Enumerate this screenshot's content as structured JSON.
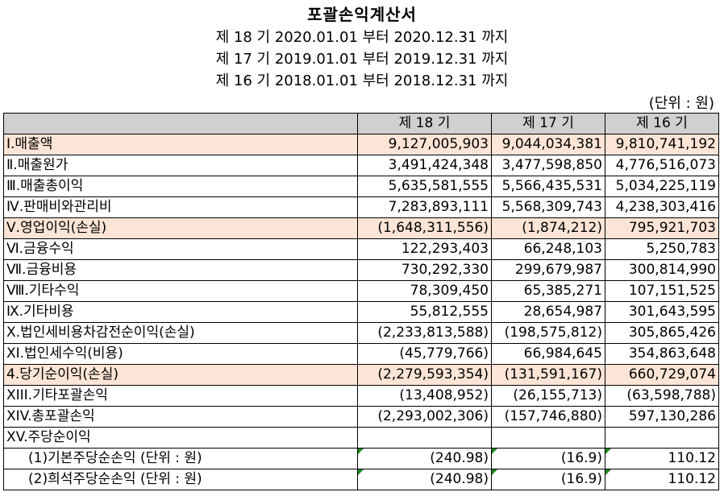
{
  "document": {
    "title": "포괄손익계산서",
    "periods": [
      "제 18 기 2020.01.01 부터 2020.12.31 까지",
      "제 17 기 2019.01.01 부터 2019.12.31 까지",
      "제 16 기 2018.01.01 부터 2018.12.31 까지"
    ],
    "unit": "(단위 : 원)"
  },
  "table": {
    "columns": [
      "",
      "제 18 기",
      "제 17 기",
      "제 16 기"
    ],
    "rows": [
      {
        "label": "Ⅰ.매출액",
        "values": [
          "9,127,005,903",
          "9,044,034,381",
          "9,810,741,192"
        ],
        "highlight": true
      },
      {
        "label": "Ⅱ.매출원가",
        "values": [
          "3,491,424,348",
          "3,477,598,850",
          "4,776,516,073"
        ]
      },
      {
        "label": "Ⅲ.매출총이익",
        "values": [
          "5,635,581,555",
          "5,566,435,531",
          "5,034,225,119"
        ]
      },
      {
        "label": "Ⅳ.판매비와관리비",
        "values": [
          "7,283,893,111",
          "5,568,309,743",
          "4,238,303,416"
        ]
      },
      {
        "label": "Ⅴ.영업이익(손실)",
        "values": [
          "(1,648,311,556)",
          "(1,874,212)",
          "795,921,703"
        ],
        "highlight": true
      },
      {
        "label": "Ⅵ.금융수익",
        "values": [
          "122,293,403",
          "66,248,103",
          "5,250,783"
        ]
      },
      {
        "label": "Ⅶ.금융비용",
        "values": [
          "730,292,330",
          "299,679,987",
          "300,814,990"
        ]
      },
      {
        "label": "Ⅷ.기타수익",
        "values": [
          "78,309,450",
          "65,385,271",
          "107,151,525"
        ]
      },
      {
        "label": "Ⅸ.기타비용",
        "values": [
          "55,812,555",
          "28,654,987",
          "301,643,595"
        ]
      },
      {
        "label": "Ⅹ.법인세비용차감전순이익(손실)",
        "values": [
          "(2,233,813,588)",
          "(198,575,812)",
          "305,865,426"
        ]
      },
      {
        "label": "XI.법인세수익(비용)",
        "values": [
          "(45,779,766)",
          "66,984,645",
          "354,863,648"
        ]
      },
      {
        "label": "4.당기순이익(손실)",
        "values": [
          "(2,279,593,354)",
          "(131,591,167)",
          "660,729,074"
        ],
        "highlight": true
      },
      {
        "label": "XIII.기타포괄손익",
        "values": [
          "(13,408,952)",
          "(26,155,713)",
          "(63,598,788)"
        ]
      },
      {
        "label": "XIV.총포괄손익",
        "values": [
          "(2,293,002,306)",
          "(157,746,880)",
          "597,130,286"
        ]
      },
      {
        "label": "XV.주당순이익",
        "values": [
          "",
          "",
          ""
        ]
      },
      {
        "label": "(1)기본주당순손익 (단위 : 원)",
        "values": [
          "(240.98)",
          "(16.9)",
          "110.12"
        ],
        "sub": true
      },
      {
        "label": "(2)희석주당순손익 (단위 : 원)",
        "values": [
          "(240.98)",
          "(16.9)",
          "110.12"
        ],
        "sub": true
      }
    ]
  },
  "colors": {
    "header_bg": "#d0d0d0",
    "highlight_bg": "#fce4d6",
    "cell_marker": "#1a8a1a"
  }
}
